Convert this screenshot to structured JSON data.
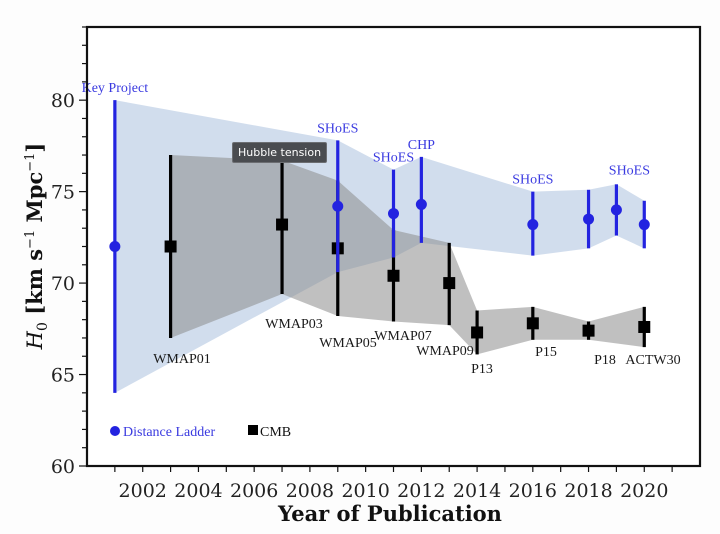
{
  "tooltip": {
    "text": "Hubble tension"
  },
  "chart_data": {
    "type": "scatter",
    "title": "",
    "xlabel": "Year of Publication",
    "ylabel": "H_0 [km s^-1 Mpc^-1]",
    "xlim": [
      2000,
      2022
    ],
    "ylim": [
      60,
      84
    ],
    "xticks": [
      2002,
      2004,
      2006,
      2008,
      2010,
      2012,
      2014,
      2016,
      2018,
      2020
    ],
    "yticks": [
      60,
      65,
      70,
      75,
      80
    ],
    "grid": false,
    "legend": {
      "position": "bottom-left",
      "entries": [
        {
          "label": "Distance Ladder",
          "marker": "circle",
          "color": "#2323e0"
        },
        {
          "label": "CMB",
          "marker": "square",
          "color": "#000000"
        }
      ]
    },
    "series": [
      {
        "name": "Distance Ladder",
        "color": "#2323e0",
        "band_color": "#c9d6e8",
        "points": [
          {
            "x": 2001,
            "y": 72.0,
            "low": 64.0,
            "high": 80.0,
            "label": "Key Project"
          },
          {
            "x": 2009,
            "y": 74.2,
            "low": 70.6,
            "high": 77.8,
            "label": "SHoES"
          },
          {
            "x": 2011,
            "y": 73.8,
            "low": 71.4,
            "high": 76.2,
            "label": "SHoES"
          },
          {
            "x": 2012,
            "y": 74.3,
            "low": 72.2,
            "high": 76.9,
            "label": "CHP"
          },
          {
            "x": 2016,
            "y": 73.2,
            "low": 71.5,
            "high": 75.0,
            "label": "SHoES"
          },
          {
            "x": 2018,
            "y": 73.5,
            "low": 71.9,
            "high": 75.1,
            "label": ""
          },
          {
            "x": 2019,
            "y": 74.0,
            "low": 72.6,
            "high": 75.4,
            "label": "SHoES"
          },
          {
            "x": 2020,
            "y": 73.2,
            "low": 71.9,
            "high": 74.5,
            "label": ""
          }
        ]
      },
      {
        "name": "CMB",
        "color": "#000000",
        "band_color": "#9a9a9a",
        "points": [
          {
            "x": 2003,
            "y": 72.0,
            "low": 67.0,
            "high": 77.0,
            "label": "WMAP01"
          },
          {
            "x": 2007,
            "y": 73.2,
            "low": 69.4,
            "high": 76.7,
            "label": "WMAP03"
          },
          {
            "x": 2009,
            "y": 71.9,
            "low": 68.2,
            "high": 75.6,
            "label": "WMAP05"
          },
          {
            "x": 2011,
            "y": 70.4,
            "low": 67.9,
            "high": 72.9,
            "label": "WMAP07"
          },
          {
            "x": 2013,
            "y": 70.0,
            "low": 67.7,
            "high": 72.2,
            "label": "WMAP09"
          },
          {
            "x": 2014,
            "y": 67.3,
            "low": 66.1,
            "high": 68.5,
            "label": "P13"
          },
          {
            "x": 2016,
            "y": 67.8,
            "low": 66.9,
            "high": 68.7,
            "label": "P15"
          },
          {
            "x": 2018,
            "y": 67.4,
            "low": 66.9,
            "high": 67.9,
            "label": "P18"
          },
          {
            "x": 2020,
            "y": 67.6,
            "low": 66.5,
            "high": 68.7,
            "label": "ACTW30"
          }
        ]
      }
    ]
  }
}
